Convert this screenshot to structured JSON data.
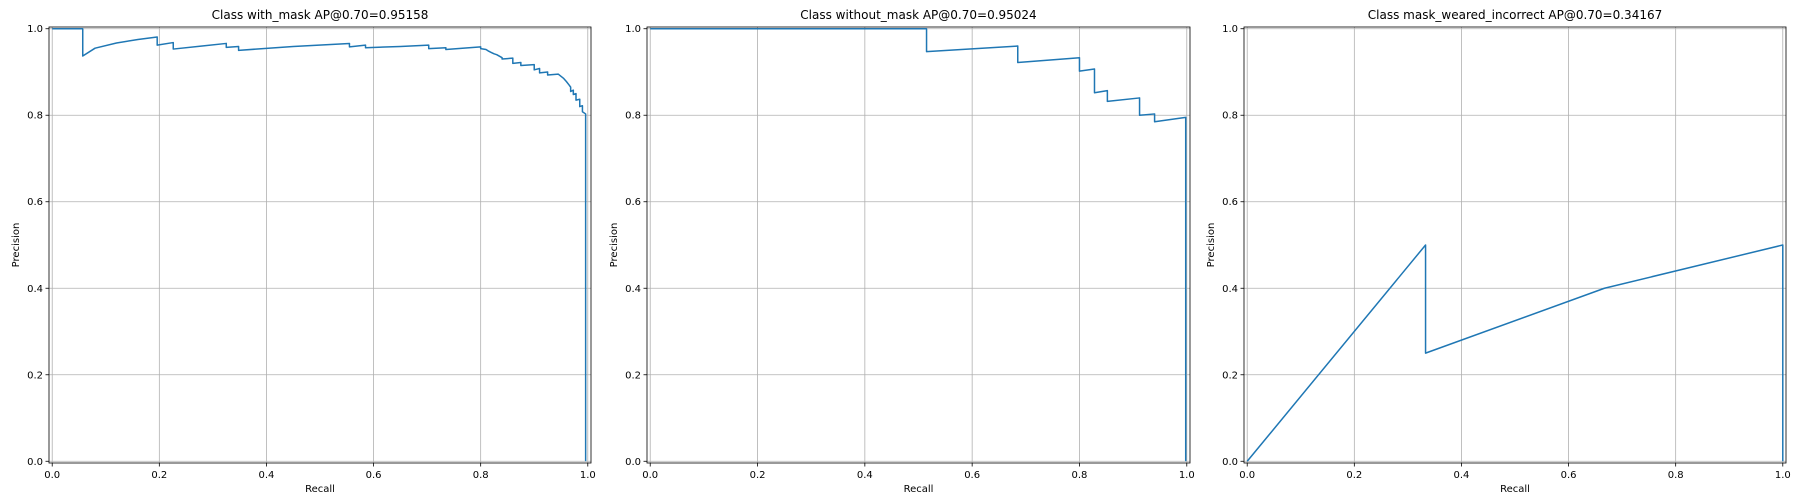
{
  "figure": {
    "line_color": "#1f77b4",
    "grid": true
  },
  "chart_data": [
    {
      "type": "line",
      "title": "Class with_mask AP@0.70=0.95158",
      "xlabel": "Recall",
      "ylabel": "Precision",
      "xlim": [
        0,
        1
      ],
      "ylim": [
        0,
        1
      ],
      "xticks": [
        "0.0",
        "0.2",
        "0.4",
        "0.6",
        "0.8",
        "1.0"
      ],
      "yticks": [
        "0.0",
        "0.2",
        "0.4",
        "0.6",
        "0.8",
        "1.0"
      ],
      "series": [
        {
          "x": [
            0.0,
            0.057,
            0.057,
            0.08,
            0.12,
            0.16,
            0.196,
            0.196,
            0.226,
            0.226,
            0.28,
            0.325,
            0.325,
            0.348,
            0.348,
            0.45,
            0.555,
            0.555,
            0.585,
            0.585,
            0.65,
            0.703,
            0.703,
            0.735,
            0.735,
            0.8,
            0.8,
            0.81,
            0.815,
            0.82,
            0.825,
            0.83,
            0.84,
            0.84,
            0.86,
            0.86,
            0.875,
            0.875,
            0.9,
            0.9,
            0.91,
            0.91,
            0.925,
            0.925,
            0.945,
            0.95,
            0.955,
            0.96,
            0.965,
            0.968,
            0.968,
            0.973,
            0.973,
            0.978,
            0.978,
            0.985,
            0.985,
            0.99,
            0.99,
            0.996,
            0.996
          ],
          "y": [
            1.0,
            1.0,
            0.937,
            0.955,
            0.967,
            0.975,
            0.981,
            0.962,
            0.968,
            0.953,
            0.96,
            0.966,
            0.957,
            0.959,
            0.95,
            0.959,
            0.966,
            0.958,
            0.962,
            0.956,
            0.959,
            0.962,
            0.954,
            0.956,
            0.952,
            0.958,
            0.954,
            0.952,
            0.948,
            0.945,
            0.942,
            0.94,
            0.933,
            0.93,
            0.932,
            0.92,
            0.922,
            0.915,
            0.917,
            0.905,
            0.908,
            0.898,
            0.9,
            0.893,
            0.895,
            0.89,
            0.885,
            0.878,
            0.87,
            0.865,
            0.855,
            0.858,
            0.848,
            0.85,
            0.835,
            0.837,
            0.82,
            0.822,
            0.808,
            0.803,
            0.0
          ]
        }
      ]
    },
    {
      "type": "line",
      "title": "Class without_mask AP@0.70=0.95024",
      "xlabel": "Recall",
      "ylabel": "Precision",
      "xlim": [
        0,
        1
      ],
      "ylim": [
        0,
        1
      ],
      "xticks": [
        "0.0",
        "0.2",
        "0.4",
        "0.6",
        "0.8",
        "1.0"
      ],
      "yticks": [
        "0.0",
        "0.2",
        "0.4",
        "0.6",
        "0.8",
        "1.0"
      ],
      "series": [
        {
          "x": [
            0.0,
            0.515,
            0.515,
            0.685,
            0.685,
            0.8,
            0.8,
            0.828,
            0.828,
            0.852,
            0.852,
            0.912,
            0.912,
            0.94,
            0.94,
            0.998,
            0.998
          ],
          "y": [
            1.0,
            1.0,
            0.947,
            0.96,
            0.922,
            0.933,
            0.902,
            0.907,
            0.852,
            0.857,
            0.832,
            0.84,
            0.8,
            0.803,
            0.785,
            0.795,
            0.0
          ]
        }
      ]
    },
    {
      "type": "line",
      "title": "Class mask_weared_incorrect AP@0.70=0.34167",
      "xlabel": "Recall",
      "ylabel": "Precision",
      "xlim": [
        0,
        1
      ],
      "ylim": [
        0,
        1
      ],
      "xticks": [
        "0.0",
        "0.2",
        "0.4",
        "0.6",
        "0.8",
        "1.0"
      ],
      "yticks": [
        "0.0",
        "0.2",
        "0.4",
        "0.6",
        "0.8",
        "1.0"
      ],
      "series": [
        {
          "x": [
            0.0,
            0.333,
            0.333,
            0.667,
            1.0,
            1.0
          ],
          "y": [
            0.0,
            0.5,
            0.25,
            0.4,
            0.5,
            0.0
          ]
        }
      ]
    }
  ]
}
